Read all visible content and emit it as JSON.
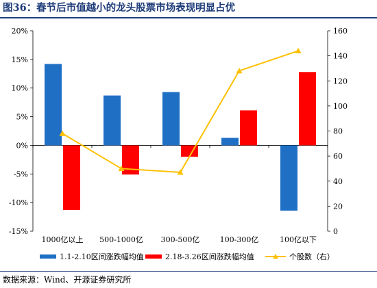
{
  "header": {
    "title": "图36：春节后市值越小的龙头股票市场表现明显占优"
  },
  "footer": {
    "source": "数据来源：Wind、开源证券研究所"
  },
  "chart_data": {
    "type": "bar",
    "categories": [
      "1000亿以上",
      "500-1000亿",
      "300-500亿",
      "100-300亿",
      "100亿以下"
    ],
    "series": [
      {
        "name": "1.1-2.10区间涨跌幅均值",
        "type": "bar",
        "axis": "left",
        "color": "#1f6fc5",
        "values": [
          14.2,
          8.7,
          9.3,
          1.3,
          -11.4
        ]
      },
      {
        "name": "2.18-3.26区间涨跌幅均值",
        "type": "bar",
        "axis": "left",
        "color": "#ff0000",
        "values": [
          -11.3,
          -5.1,
          -2.0,
          6.1,
          12.8
        ]
      },
      {
        "name": "个股数（右）",
        "type": "line",
        "axis": "right",
        "color": "#ffc000",
        "marker": "triangle",
        "values": [
          78,
          50,
          47,
          128,
          144
        ]
      }
    ],
    "left_axis": {
      "min": -15,
      "max": 20,
      "step": 5,
      "tick_labels": [
        "-15%",
        "-10%",
        "-5%",
        "0%",
        "5%",
        "10%",
        "15%",
        "20%"
      ]
    },
    "right_axis": {
      "min": 0,
      "max": 160,
      "step": 20,
      "tick_labels": [
        "0",
        "20",
        "40",
        "60",
        "80",
        "100",
        "120",
        "140",
        "160"
      ]
    },
    "grid": false,
    "legend_position": "bottom"
  }
}
